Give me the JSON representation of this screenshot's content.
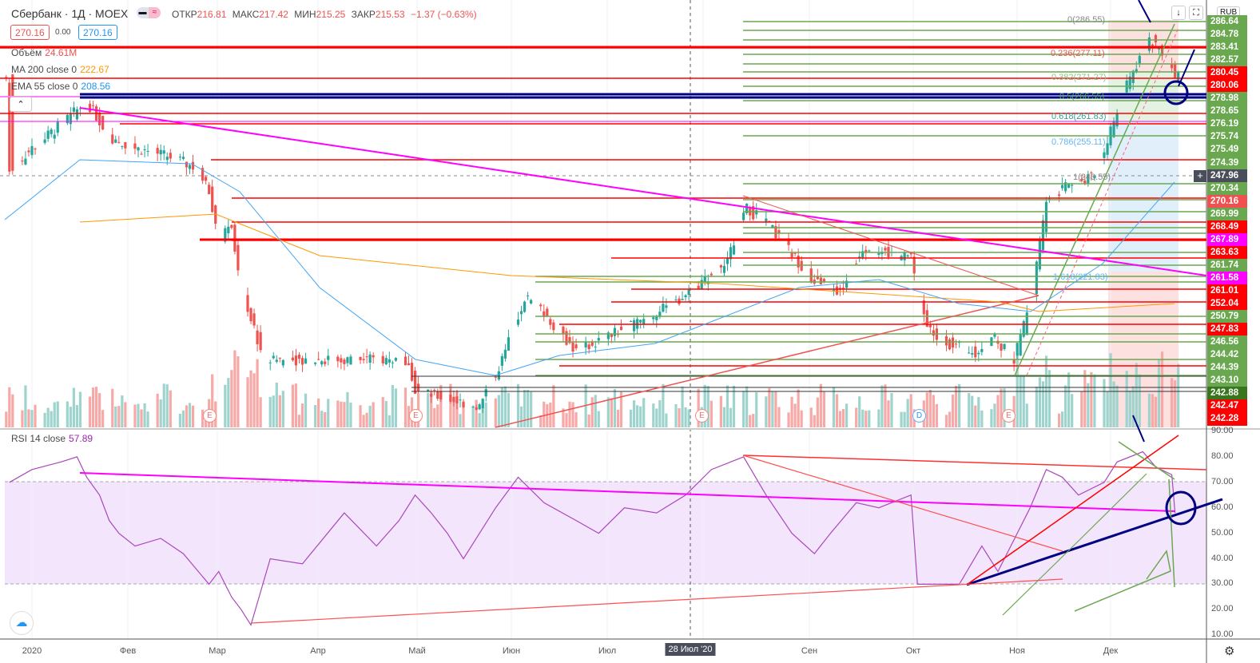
{
  "header": {
    "symbol": "Сбербанк · 1Д · MOEX",
    "toggle_icons": [
      "minus-icon",
      "approx-icon"
    ],
    "open_label": "ОТКР",
    "open": "216.81",
    "high_label": "МАКС",
    "high": "217.42",
    "low_label": "МИН",
    "low": "215.25",
    "close_label": "ЗАКР",
    "close": "215.53",
    "change": "−1.37 (−0.63%)",
    "sell_price": "270.16",
    "spread": "0.00",
    "buy_price": "270.16"
  },
  "indicators": {
    "volume": {
      "label": "Объём",
      "value": "24.61M"
    },
    "ma": {
      "label": "MA 200 close 0",
      "value": "222.67"
    },
    "ema": {
      "label": "EMA 55 close 0",
      "value": "208.56"
    },
    "rsi": {
      "label": "RSI 14 close",
      "value": "57.89"
    }
  },
  "currency": "RUB",
  "buttons": {
    "scroll_down": "↓",
    "fullscreen": "⛶",
    "collapse": "⌃"
  },
  "price_labels": [
    {
      "text": "286.64",
      "color": "#6aa84f"
    },
    {
      "text": "284.78",
      "color": "#6aa84f"
    },
    {
      "text": "283.41",
      "color": "#6aa84f"
    },
    {
      "text": "282.57",
      "color": "#6aa84f"
    },
    {
      "text": "280.45",
      "color": "#ff0000"
    },
    {
      "text": "280.06",
      "color": "#ff0000"
    },
    {
      "text": "278.98",
      "color": "#6aa84f"
    },
    {
      "text": "278.65",
      "color": "#6aa84f"
    },
    {
      "text": "276.19",
      "color": "#6aa84f"
    },
    {
      "text": "275.74",
      "color": "#6aa84f"
    },
    {
      "text": "275.49",
      "color": "#6aa84f"
    },
    {
      "text": "274.39",
      "color": "#6aa84f"
    },
    {
      "text": "247.96",
      "color": "#4a4e5a"
    },
    {
      "text": "270.34",
      "color": "#6aa84f"
    },
    {
      "text": "270.16",
      "color": "#f05050"
    },
    {
      "text": "269.99",
      "color": "#6aa84f"
    },
    {
      "text": "268.49",
      "color": "#ff0000"
    },
    {
      "text": "267.89",
      "color": "#ff00ff"
    },
    {
      "text": "263.63",
      "color": "#ff0000"
    },
    {
      "text": "261.74",
      "color": "#6aa84f"
    },
    {
      "text": "261.58",
      "color": "#ff00ff"
    },
    {
      "text": "261.01",
      "color": "#ff0000"
    },
    {
      "text": "252.04",
      "color": "#ff0000"
    },
    {
      "text": "250.79",
      "color": "#6aa84f"
    },
    {
      "text": "247.83",
      "color": "#ff0000"
    },
    {
      "text": "246.56",
      "color": "#6aa84f"
    },
    {
      "text": "244.42",
      "color": "#6aa84f"
    },
    {
      "text": "244.39",
      "color": "#6aa84f"
    },
    {
      "text": "243.10",
      "color": "#6aa84f"
    },
    {
      "text": "242.88",
      "color": "#38761d"
    },
    {
      "text": "242.47",
      "color": "#ff0000"
    },
    {
      "text": "242.28",
      "color": "#ff0000"
    }
  ],
  "fib_levels": [
    {
      "text": "0(286.55)",
      "color": "#888888"
    },
    {
      "text": "0.236(277.11)",
      "color": "#ef5350"
    },
    {
      "text": "0.382(271.27)",
      "color": "#81c784"
    },
    {
      "text": "0.5(266.55)",
      "color": "#4caf50"
    },
    {
      "text": "0.618(261.83)",
      "color": "#26a69a"
    },
    {
      "text": "0.786(255.11)",
      "color": "#64b5f6"
    },
    {
      "text": "1(246.55)",
      "color": "#888888"
    },
    {
      "text": "1.618(221.83)",
      "color": "#64b5f6"
    }
  ],
  "rsi_axis": [
    "90.00",
    "80.00",
    "70.00",
    "60.00",
    "50.00",
    "40.00",
    "30.00",
    "20.00",
    "10.00"
  ],
  "time_axis": [
    "2020",
    "Фев",
    "Мар",
    "Апр",
    "Май",
    "Июн",
    "Июл",
    "Сен",
    "Окт",
    "Ноя",
    "Дек"
  ],
  "crosshair_date": "28 Июл '20",
  "event_markers": [
    "E",
    "E",
    "E",
    "D",
    "E"
  ],
  "chart_data": {
    "type": "candlestick",
    "x_unit": "day of 2020",
    "close_anchors": [
      [
        -7,
        248
      ],
      [
        0,
        254
      ],
      [
        9,
        260
      ],
      [
        17,
        266
      ],
      [
        24,
        257
      ],
      [
        32,
        254
      ],
      [
        42,
        252
      ],
      [
        51,
        249
      ],
      [
        55,
        243
      ],
      [
        58,
        231
      ],
      [
        62,
        234
      ],
      [
        65,
        218
      ],
      [
        72,
        200
      ],
      [
        117,
        200
      ],
      [
        119,
        192
      ],
      [
        129,
        190
      ],
      [
        139,
        188
      ],
      [
        146,
        200
      ],
      [
        153,
        216
      ],
      [
        159,
        212
      ],
      [
        169,
        202
      ],
      [
        179,
        206
      ],
      [
        189,
        210
      ],
      [
        199,
        214
      ],
      [
        208,
        220
      ],
      [
        216,
        225
      ],
      [
        221,
        239
      ],
      [
        228,
        235
      ],
      [
        236,
        227
      ],
      [
        243,
        220
      ],
      [
        251,
        217
      ],
      [
        258,
        229
      ],
      [
        266,
        227
      ],
      [
        273,
        226
      ],
      [
        278,
        208
      ],
      [
        285,
        204
      ],
      [
        293,
        202
      ],
      [
        298,
        206
      ],
      [
        305,
        200
      ],
      [
        310,
        214
      ],
      [
        315,
        241
      ],
      [
        323,
        245
      ],
      [
        330,
        247
      ],
      [
        336,
        261
      ],
      [
        341,
        272
      ],
      [
        347,
        282
      ],
      [
        352,
        278
      ],
      [
        355,
        272
      ]
    ],
    "rsi": {
      "ylim": [
        10,
        90
      ],
      "bands": [
        30,
        70
      ],
      "values": [
        [
          -7,
          70
        ],
        [
          0,
          75
        ],
        [
          9,
          78
        ],
        [
          14,
          80
        ],
        [
          17,
          72
        ],
        [
          21,
          65
        ],
        [
          24,
          55
        ],
        [
          27,
          50
        ],
        [
          32,
          45
        ],
        [
          40,
          48
        ],
        [
          47,
          42
        ],
        [
          55,
          30
        ],
        [
          58,
          35
        ],
        [
          62,
          25
        ],
        [
          65,
          20
        ],
        [
          68,
          14
        ],
        [
          74,
          40
        ],
        [
          84,
          38
        ],
        [
          97,
          58
        ],
        [
          107,
          45
        ],
        [
          114,
          55
        ],
        [
          119,
          65
        ],
        [
          124,
          58
        ],
        [
          129,
          50
        ],
        [
          134,
          40
        ],
        [
          139,
          50
        ],
        [
          144,
          60
        ],
        [
          151,
          72
        ],
        [
          159,
          62
        ],
        [
          169,
          55
        ],
        [
          176,
          50
        ],
        [
          184,
          60
        ],
        [
          194,
          58
        ],
        [
          203,
          65
        ],
        [
          211,
          75
        ],
        [
          221,
          80
        ],
        [
          228,
          65
        ],
        [
          236,
          50
        ],
        [
          243,
          42
        ],
        [
          248,
          50
        ],
        [
          256,
          62
        ],
        [
          263,
          60
        ],
        [
          273,
          65
        ],
        [
          275,
          30
        ],
        [
          288,
          30
        ],
        [
          295,
          45
        ],
        [
          300,
          35
        ],
        [
          310,
          60
        ],
        [
          315,
          75
        ],
        [
          320,
          72
        ],
        [
          325,
          65
        ],
        [
          333,
          70
        ],
        [
          337,
          78
        ],
        [
          345,
          82
        ],
        [
          349,
          76
        ],
        [
          354,
          73
        ],
        [
          355,
          58
        ]
      ]
    }
  }
}
